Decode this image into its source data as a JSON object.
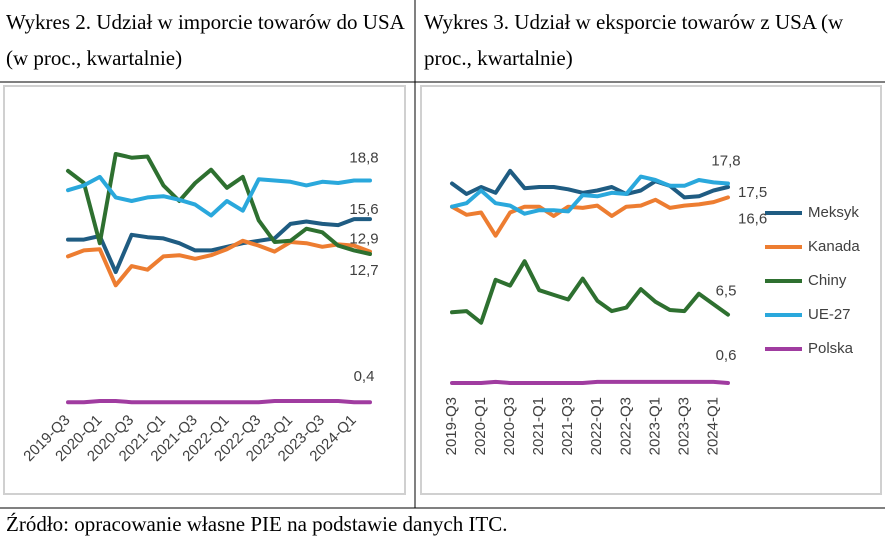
{
  "chart_data": [
    {
      "type": "line",
      "title": "Wykres 2. Udział w imporcie towarów do USA (w proc., kwartalnie)",
      "categories": [
        "2019-Q3",
        null,
        "2020-Q1",
        null,
        "2020-Q3",
        null,
        "2021-Q1",
        null,
        "2021-Q3",
        null,
        "2022-Q1",
        null,
        "2022-Q3",
        null,
        "2023-Q1",
        null,
        "2023-Q3",
        null,
        "2024-Q1",
        null
      ],
      "ylim": [
        0,
        22
      ],
      "series": [
        {
          "color": "#1f5c82",
          "values": [
            13.9,
            13.9,
            14.2,
            11.2,
            14.3,
            14.1,
            14.0,
            13.6,
            13.0,
            13.0,
            13.3,
            13.6,
            13.8,
            14.0,
            15.2,
            15.4,
            15.2,
            15.1,
            15.6,
            15.6
          ],
          "value_labels": [
            null,
            null,
            null,
            null,
            null,
            null,
            null,
            null,
            null,
            null,
            null,
            null,
            null,
            null,
            null,
            null,
            null,
            null,
            null,
            "15,6"
          ]
        },
        {
          "color": "#ed7d31",
          "values": [
            12.5,
            13.0,
            13.1,
            10.1,
            11.7,
            11.4,
            12.5,
            12.6,
            12.3,
            12.6,
            13.1,
            13.8,
            13.4,
            12.9,
            13.7,
            13.6,
            13.3,
            13.5,
            13.4,
            12.9
          ],
          "value_labels": [
            null,
            null,
            null,
            null,
            null,
            null,
            null,
            null,
            null,
            null,
            null,
            null,
            null,
            null,
            null,
            null,
            null,
            null,
            null,
            "12,9"
          ]
        },
        {
          "color": "#2e7030",
          "values": [
            19.6,
            18.6,
            13.6,
            21.0,
            20.7,
            20.8,
            18.4,
            17.1,
            18.6,
            19.7,
            18.2,
            19.1,
            15.5,
            13.7,
            13.8,
            14.8,
            14.5,
            13.4,
            13.0,
            12.7
          ],
          "value_labels": [
            null,
            null,
            null,
            null,
            null,
            null,
            null,
            null,
            null,
            null,
            null,
            null,
            null,
            null,
            null,
            null,
            null,
            null,
            null,
            "12,7"
          ]
        },
        {
          "color": "#2aa8dc",
          "values": [
            18.0,
            18.4,
            19.1,
            17.4,
            17.1,
            17.4,
            17.5,
            17.2,
            16.8,
            15.9,
            17.1,
            16.3,
            18.9,
            18.8,
            18.7,
            18.4,
            18.7,
            18.6,
            18.8,
            18.8
          ],
          "value_labels": [
            null,
            null,
            null,
            null,
            null,
            null,
            null,
            null,
            null,
            null,
            null,
            null,
            null,
            null,
            null,
            null,
            null,
            null,
            null,
            "18,8"
          ]
        },
        {
          "color": "#a03ca0",
          "values": [
            0.4,
            0.4,
            0.5,
            0.5,
            0.4,
            0.4,
            0.4,
            0.4,
            0.4,
            0.4,
            0.4,
            0.4,
            0.4,
            0.5,
            0.5,
            0.5,
            0.5,
            0.5,
            0.4,
            0.4
          ],
          "value_labels": [
            null,
            null,
            null,
            null,
            null,
            null,
            null,
            null,
            null,
            null,
            null,
            null,
            null,
            null,
            null,
            null,
            null,
            null,
            null,
            "0,4"
          ]
        }
      ]
    },
    {
      "type": "line",
      "title": "Wykres 3. Udział w eksporcie towarów z USA (w proc., kwartalnie)",
      "categories": [
        "2019-Q3",
        null,
        "2020-Q1",
        null,
        "2020-Q3",
        null,
        "2021-Q1",
        null,
        "2021-Q3",
        null,
        "2022-Q1",
        null,
        "2022-Q3",
        null,
        "2023-Q1",
        null,
        "2023-Q3",
        null,
        "2024-Q1",
        null
      ],
      "ylim": [
        0,
        20
      ],
      "legend": "right",
      "series": [
        {
          "name": "Meksyk",
          "color": "#1f5c82",
          "values": [
            17.8,
            16.9,
            17.5,
            17.0,
            18.9,
            17.4,
            17.5,
            17.5,
            17.3,
            17.0,
            17.2,
            17.5,
            16.9,
            17.2,
            18.0,
            17.6,
            16.6,
            16.7,
            17.2,
            17.5
          ],
          "value_labels": [
            null,
            null,
            null,
            null,
            null,
            null,
            null,
            null,
            null,
            null,
            null,
            null,
            null,
            null,
            null,
            null,
            null,
            null,
            null,
            "17,5"
          ]
        },
        {
          "name": "Kanada",
          "color": "#ed7d31",
          "values": [
            15.8,
            15.1,
            15.3,
            13.3,
            15.3,
            15.8,
            15.8,
            15.0,
            15.8,
            15.7,
            15.9,
            15.0,
            15.8,
            15.9,
            16.4,
            15.7,
            15.9,
            16.0,
            16.2,
            16.6
          ],
          "value_labels": [
            null,
            null,
            null,
            null,
            null,
            null,
            null,
            null,
            null,
            null,
            null,
            null,
            null,
            null,
            null,
            null,
            null,
            null,
            null,
            "16,6"
          ]
        },
        {
          "name": "Chiny",
          "color": "#2e7030",
          "values": [
            6.7,
            6.8,
            5.8,
            9.5,
            9.0,
            11.1,
            8.6,
            8.2,
            7.8,
            9.6,
            7.7,
            6.8,
            7.1,
            8.7,
            7.6,
            6.9,
            6.8,
            8.3,
            7.4,
            6.5
          ],
          "value_labels": [
            null,
            null,
            null,
            null,
            null,
            null,
            null,
            null,
            null,
            null,
            null,
            null,
            null,
            null,
            null,
            null,
            null,
            null,
            null,
            "6,5"
          ]
        },
        {
          "name": "UE-27",
          "color": "#2aa8dc",
          "values": [
            15.8,
            16.1,
            17.2,
            16.1,
            15.9,
            15.2,
            15.5,
            15.5,
            15.4,
            16.8,
            16.7,
            17.0,
            16.9,
            18.4,
            18.1,
            17.6,
            17.6,
            18.1,
            17.9,
            17.8
          ],
          "value_labels": [
            null,
            null,
            null,
            null,
            null,
            null,
            null,
            null,
            null,
            null,
            null,
            null,
            null,
            null,
            null,
            null,
            null,
            null,
            null,
            "17,8"
          ]
        },
        {
          "name": "Polska",
          "color": "#a03ca0",
          "values": [
            0.6,
            0.6,
            0.6,
            0.7,
            0.6,
            0.6,
            0.6,
            0.6,
            0.6,
            0.6,
            0.7,
            0.7,
            0.7,
            0.7,
            0.7,
            0.7,
            0.7,
            0.7,
            0.7,
            0.6
          ],
          "value_labels": [
            null,
            null,
            null,
            null,
            null,
            null,
            null,
            null,
            null,
            null,
            null,
            null,
            null,
            null,
            null,
            null,
            null,
            null,
            null,
            "0,6"
          ]
        }
      ]
    }
  ],
  "source": "Źródło: opracowanie własne PIE na podstawie danych ITC."
}
